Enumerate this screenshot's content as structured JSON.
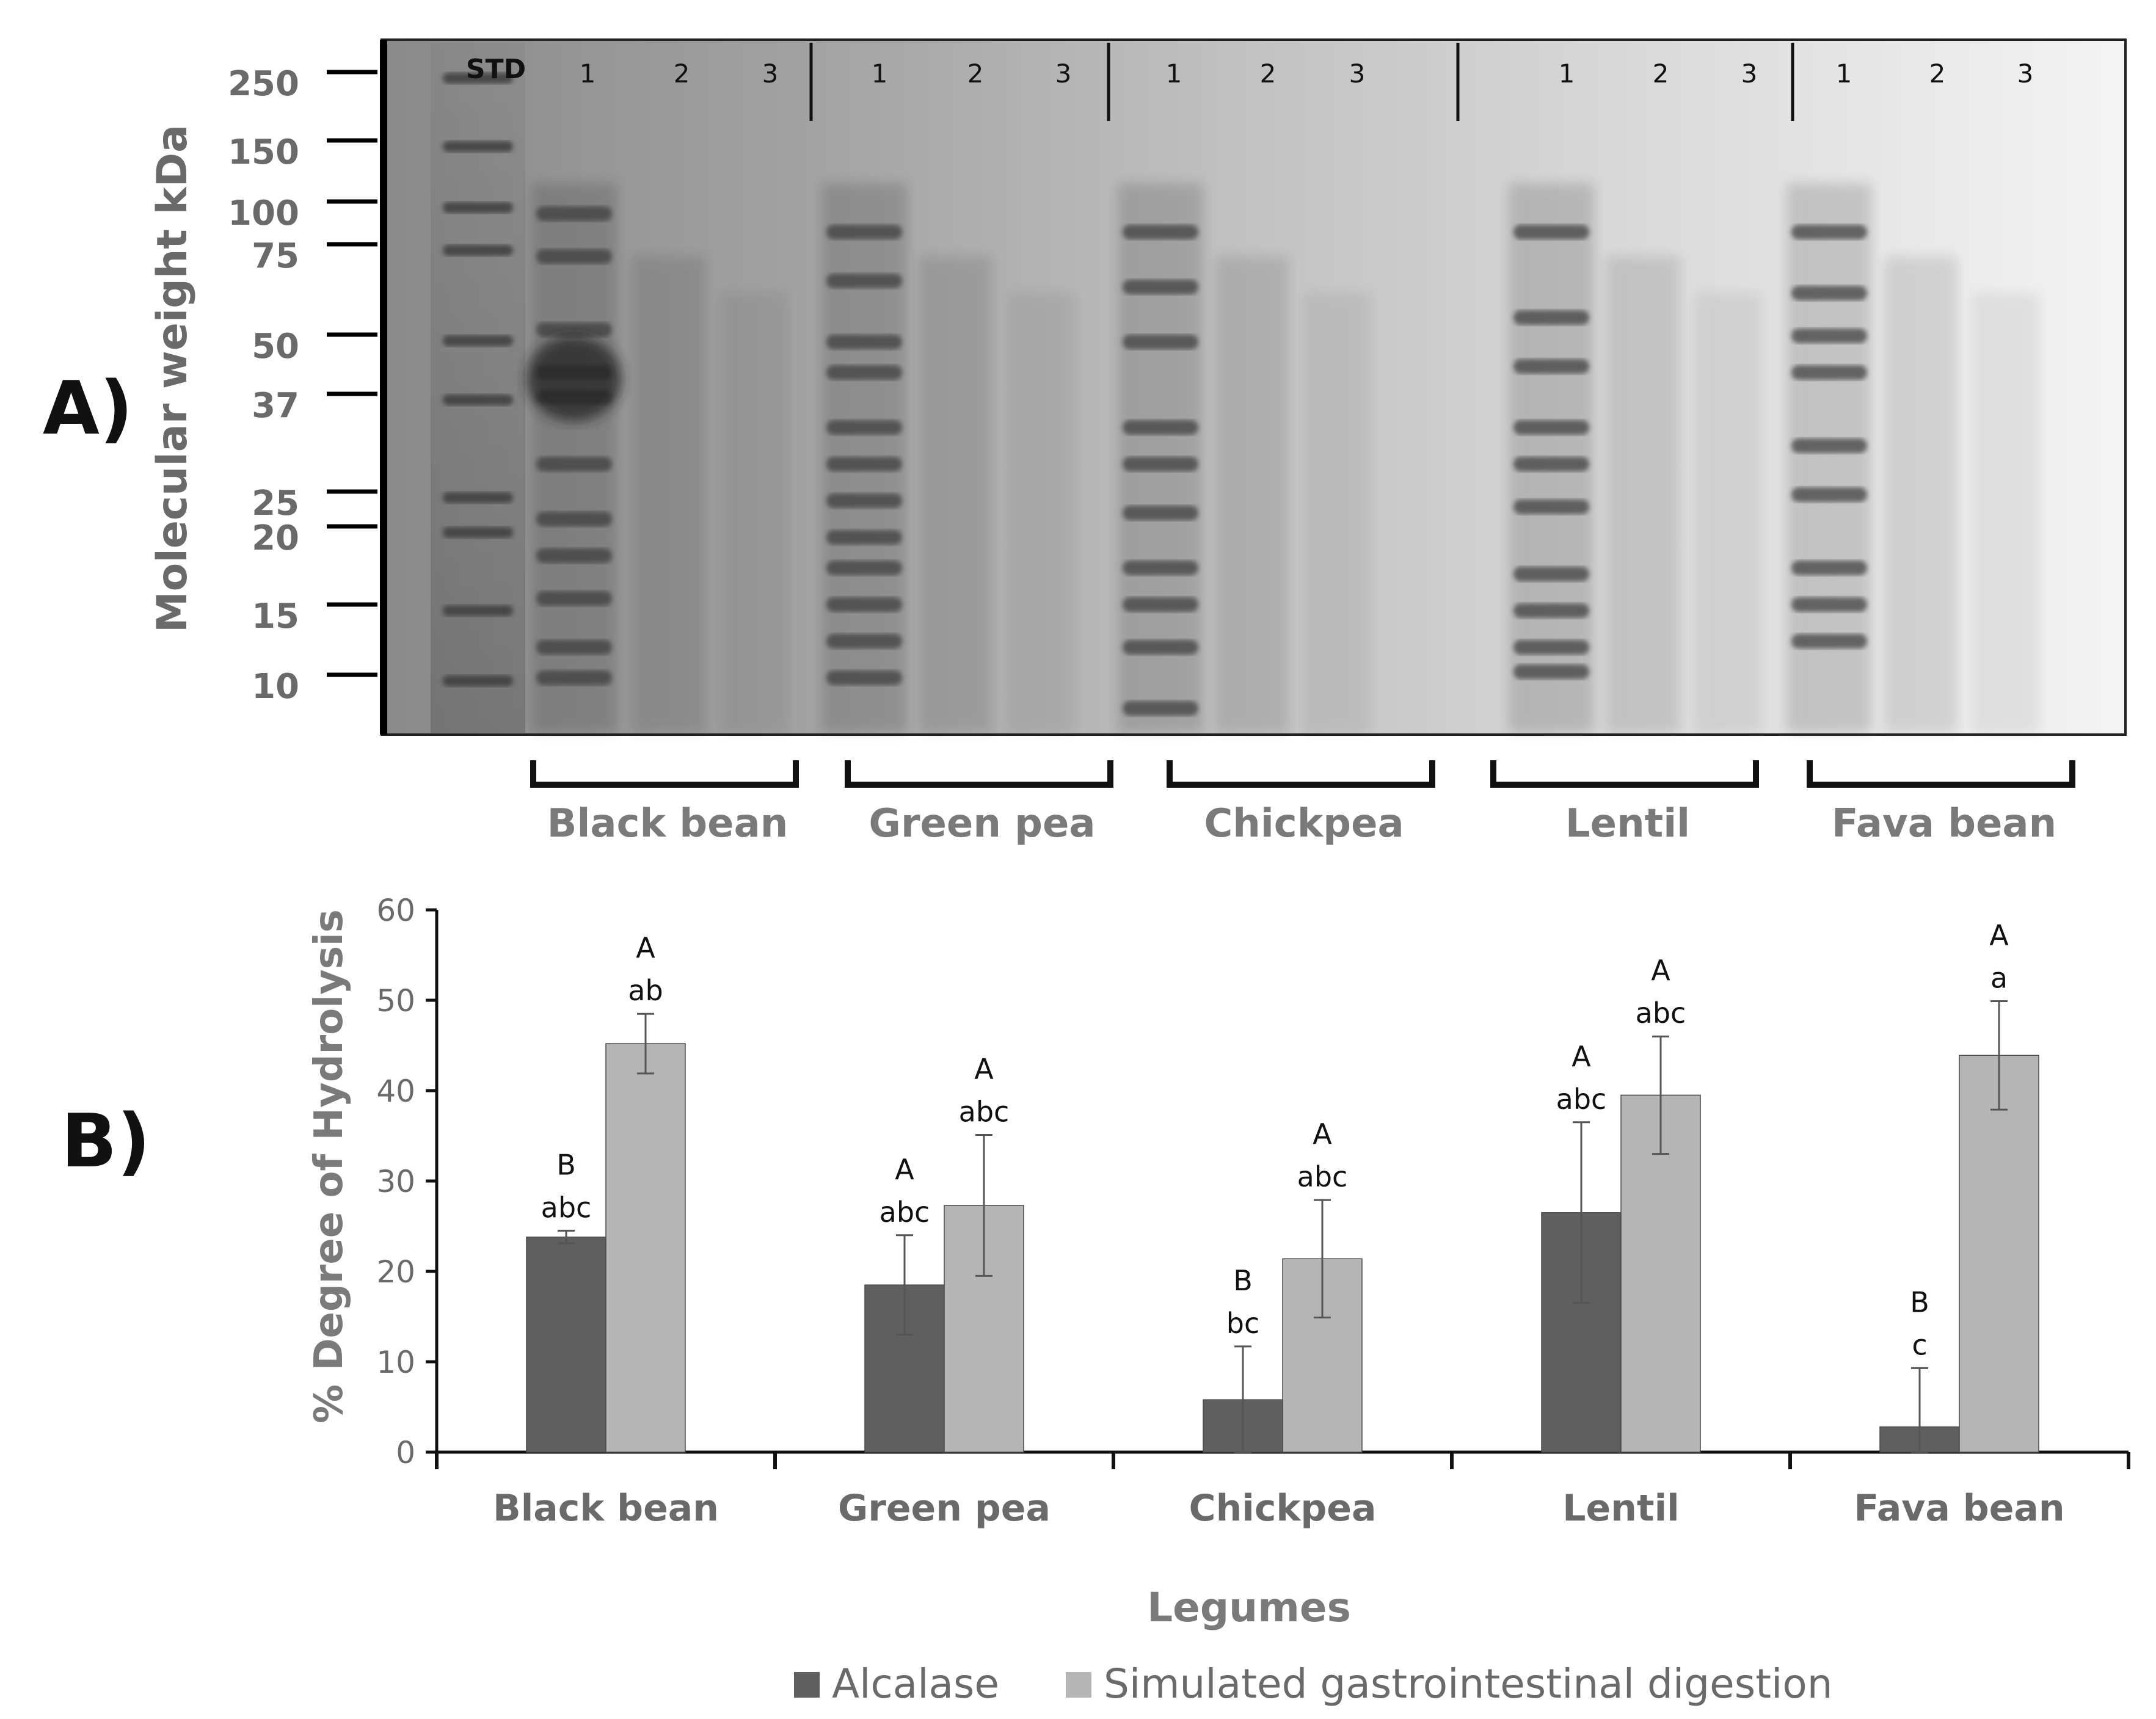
{
  "panel_a": {
    "label": "A)",
    "ylabel": "Molecular weight kDa",
    "mw_ticks": [
      "250",
      "150",
      "100",
      "75",
      "50",
      "37",
      "25",
      "20",
      "15",
      "10"
    ],
    "std_label": "STD",
    "lane_numbers": [
      "1",
      "2",
      "3"
    ],
    "groups": [
      "Black bean",
      "Green pea",
      "Chickpea",
      "Lentil",
      "Fava bean"
    ]
  },
  "chart_data": {
    "type": "bar",
    "panel_label": "B)",
    "title": "",
    "xlabel": "Legumes",
    "ylabel": "% Degree of Hydrolysis",
    "ylim": [
      0,
      60
    ],
    "yticks": [
      0,
      10,
      20,
      30,
      40,
      50,
      60
    ],
    "grid": false,
    "legend_position": "bottom",
    "categories": [
      "Black bean",
      "Green pea",
      "Chickpea",
      "Lentil",
      "Fava bean"
    ],
    "series": [
      {
        "name": "Alcalase",
        "color": "#5f5f5f",
        "values": [
          23.8,
          18.5,
          5.8,
          26.5,
          2.8
        ],
        "error": [
          0.7,
          5.5,
          5.9,
          10.0,
          6.5
        ],
        "annotations": [
          [
            "B",
            "abc"
          ],
          [
            "A",
            "abc"
          ],
          [
            "B",
            "bc"
          ],
          [
            "A",
            "abc"
          ],
          [
            "B",
            "c"
          ]
        ]
      },
      {
        "name": "Simulated gastrointestinal digestion",
        "color": "#b5b5b5",
        "values": [
          45.2,
          27.3,
          21.4,
          39.5,
          43.9
        ],
        "error": [
          3.3,
          7.8,
          6.5,
          6.5,
          6.0
        ],
        "annotations": [
          [
            "A",
            "ab"
          ],
          [
            "A",
            "abc"
          ],
          [
            "A",
            "abc"
          ],
          [
            "A",
            "abc"
          ],
          [
            "A",
            "a"
          ]
        ]
      }
    ]
  }
}
